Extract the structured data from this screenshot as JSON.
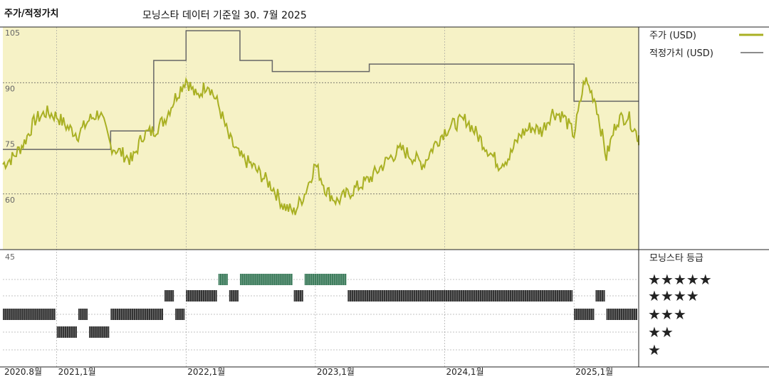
{
  "header": {
    "title": "주가/적정가치",
    "subtitle": "모닝스타 데이터 기준일 30. 7월 2025"
  },
  "chart_data": {
    "type": "line",
    "y_ticks": [
      "105",
      "90",
      "75",
      "60"
    ],
    "ylim": [
      45,
      105
    ],
    "x_ticks": [
      "2020.8월",
      "2021,1월",
      "2022,1월",
      "2023,1월",
      "2024,1월",
      "2025,1월"
    ],
    "xlim": [
      "2020-08",
      "2025-07"
    ],
    "legend_position": "right",
    "series": [
      {
        "name": "주가 (USD)",
        "color": "#a9b023",
        "x": [
          "2020-08",
          "2020-09",
          "2020-10",
          "2020-11",
          "2020-12",
          "2021-01",
          "2021-02",
          "2021-03",
          "2021-04",
          "2021-05",
          "2021-06",
          "2021-07",
          "2021-08",
          "2021-09",
          "2021-10",
          "2021-11",
          "2021-12",
          "2022-01",
          "2022-02",
          "2022-03",
          "2022-04",
          "2022-05",
          "2022-06",
          "2022-07",
          "2022-08",
          "2022-09",
          "2022-10",
          "2022-11",
          "2022-12",
          "2023-01",
          "2023-02",
          "2023-03",
          "2023-04",
          "2023-05",
          "2023-06",
          "2023-07",
          "2023-08",
          "2023-09",
          "2023-10",
          "2023-11",
          "2023-12",
          "2024-01",
          "2024-02",
          "2024-03",
          "2024-04",
          "2024-05",
          "2024-06",
          "2024-07",
          "2024-08",
          "2024-09",
          "2024-10",
          "2024-11",
          "2024-12",
          "2025-01",
          "2025-02",
          "2025-03",
          "2025-04",
          "2025-05",
          "2025-06",
          "2025-07"
        ],
        "values": [
          68,
          70,
          74,
          80,
          82,
          81,
          78,
          76,
          80,
          82,
          73,
          71,
          69,
          76,
          77,
          80,
          86,
          91,
          86,
          90,
          84,
          75,
          70,
          68,
          65,
          62,
          57,
          55,
          60,
          68,
          61,
          58,
          60,
          62,
          64,
          67,
          70,
          72,
          70,
          68,
          73,
          77,
          79,
          80,
          76,
          72,
          68,
          70,
          76,
          78,
          77,
          82,
          81,
          76,
          91,
          85,
          70,
          80,
          81,
          75
        ],
        "legend_label": "주가 (USD)"
      },
      {
        "name": "적정가치 (USD)",
        "color": "#666666",
        "steps": [
          {
            "from": "2020-08",
            "value": 72
          },
          {
            "from": "2021-06",
            "value": 77
          },
          {
            "from": "2021-10",
            "value": 96
          },
          {
            "from": "2022-01",
            "value": 104
          },
          {
            "from": "2022-06",
            "value": 96
          },
          {
            "from": "2022-09",
            "value": 93
          },
          {
            "from": "2023-06",
            "value": 95
          },
          {
            "from": "2025-01",
            "value": 85
          }
        ],
        "legend_label": "적정가치 (USD)"
      }
    ],
    "secondary_axis": {
      "label": "45"
    },
    "rating": {
      "title": "모닝스타 등급",
      "levels": [
        "★★★★★",
        "★★★★",
        "★★★",
        "★★",
        "★"
      ],
      "periods": [
        {
          "from": "2020-08",
          "to": "2021-01",
          "stars": 3
        },
        {
          "from": "2021-01",
          "to": "2021-03",
          "stars": 2
        },
        {
          "from": "2021-03",
          "to": "2021-04",
          "stars": 3
        },
        {
          "from": "2021-04",
          "to": "2021-06",
          "stars": 2
        },
        {
          "from": "2021-06",
          "to": "2021-11",
          "stars": 3
        },
        {
          "from": "2021-11",
          "to": "2021-12",
          "stars": 4
        },
        {
          "from": "2021-12",
          "to": "2022-01",
          "stars": 3
        },
        {
          "from": "2022-01",
          "to": "2022-04",
          "stars": 4
        },
        {
          "from": "2022-04",
          "to": "2022-05",
          "stars": 5
        },
        {
          "from": "2022-05",
          "to": "2022-06",
          "stars": 4
        },
        {
          "from": "2022-06",
          "to": "2022-11",
          "stars": 5
        },
        {
          "from": "2022-11",
          "to": "2022-12",
          "stars": 4
        },
        {
          "from": "2022-12",
          "to": "2023-04",
          "stars": 5
        },
        {
          "from": "2023-04",
          "to": "2025-01",
          "stars": 4
        },
        {
          "from": "2025-01",
          "to": "2025-03",
          "stars": 3
        },
        {
          "from": "2025-03",
          "to": "2025-04",
          "stars": 4
        },
        {
          "from": "2025-04",
          "to": "2025-07",
          "stars": 3
        }
      ]
    }
  }
}
